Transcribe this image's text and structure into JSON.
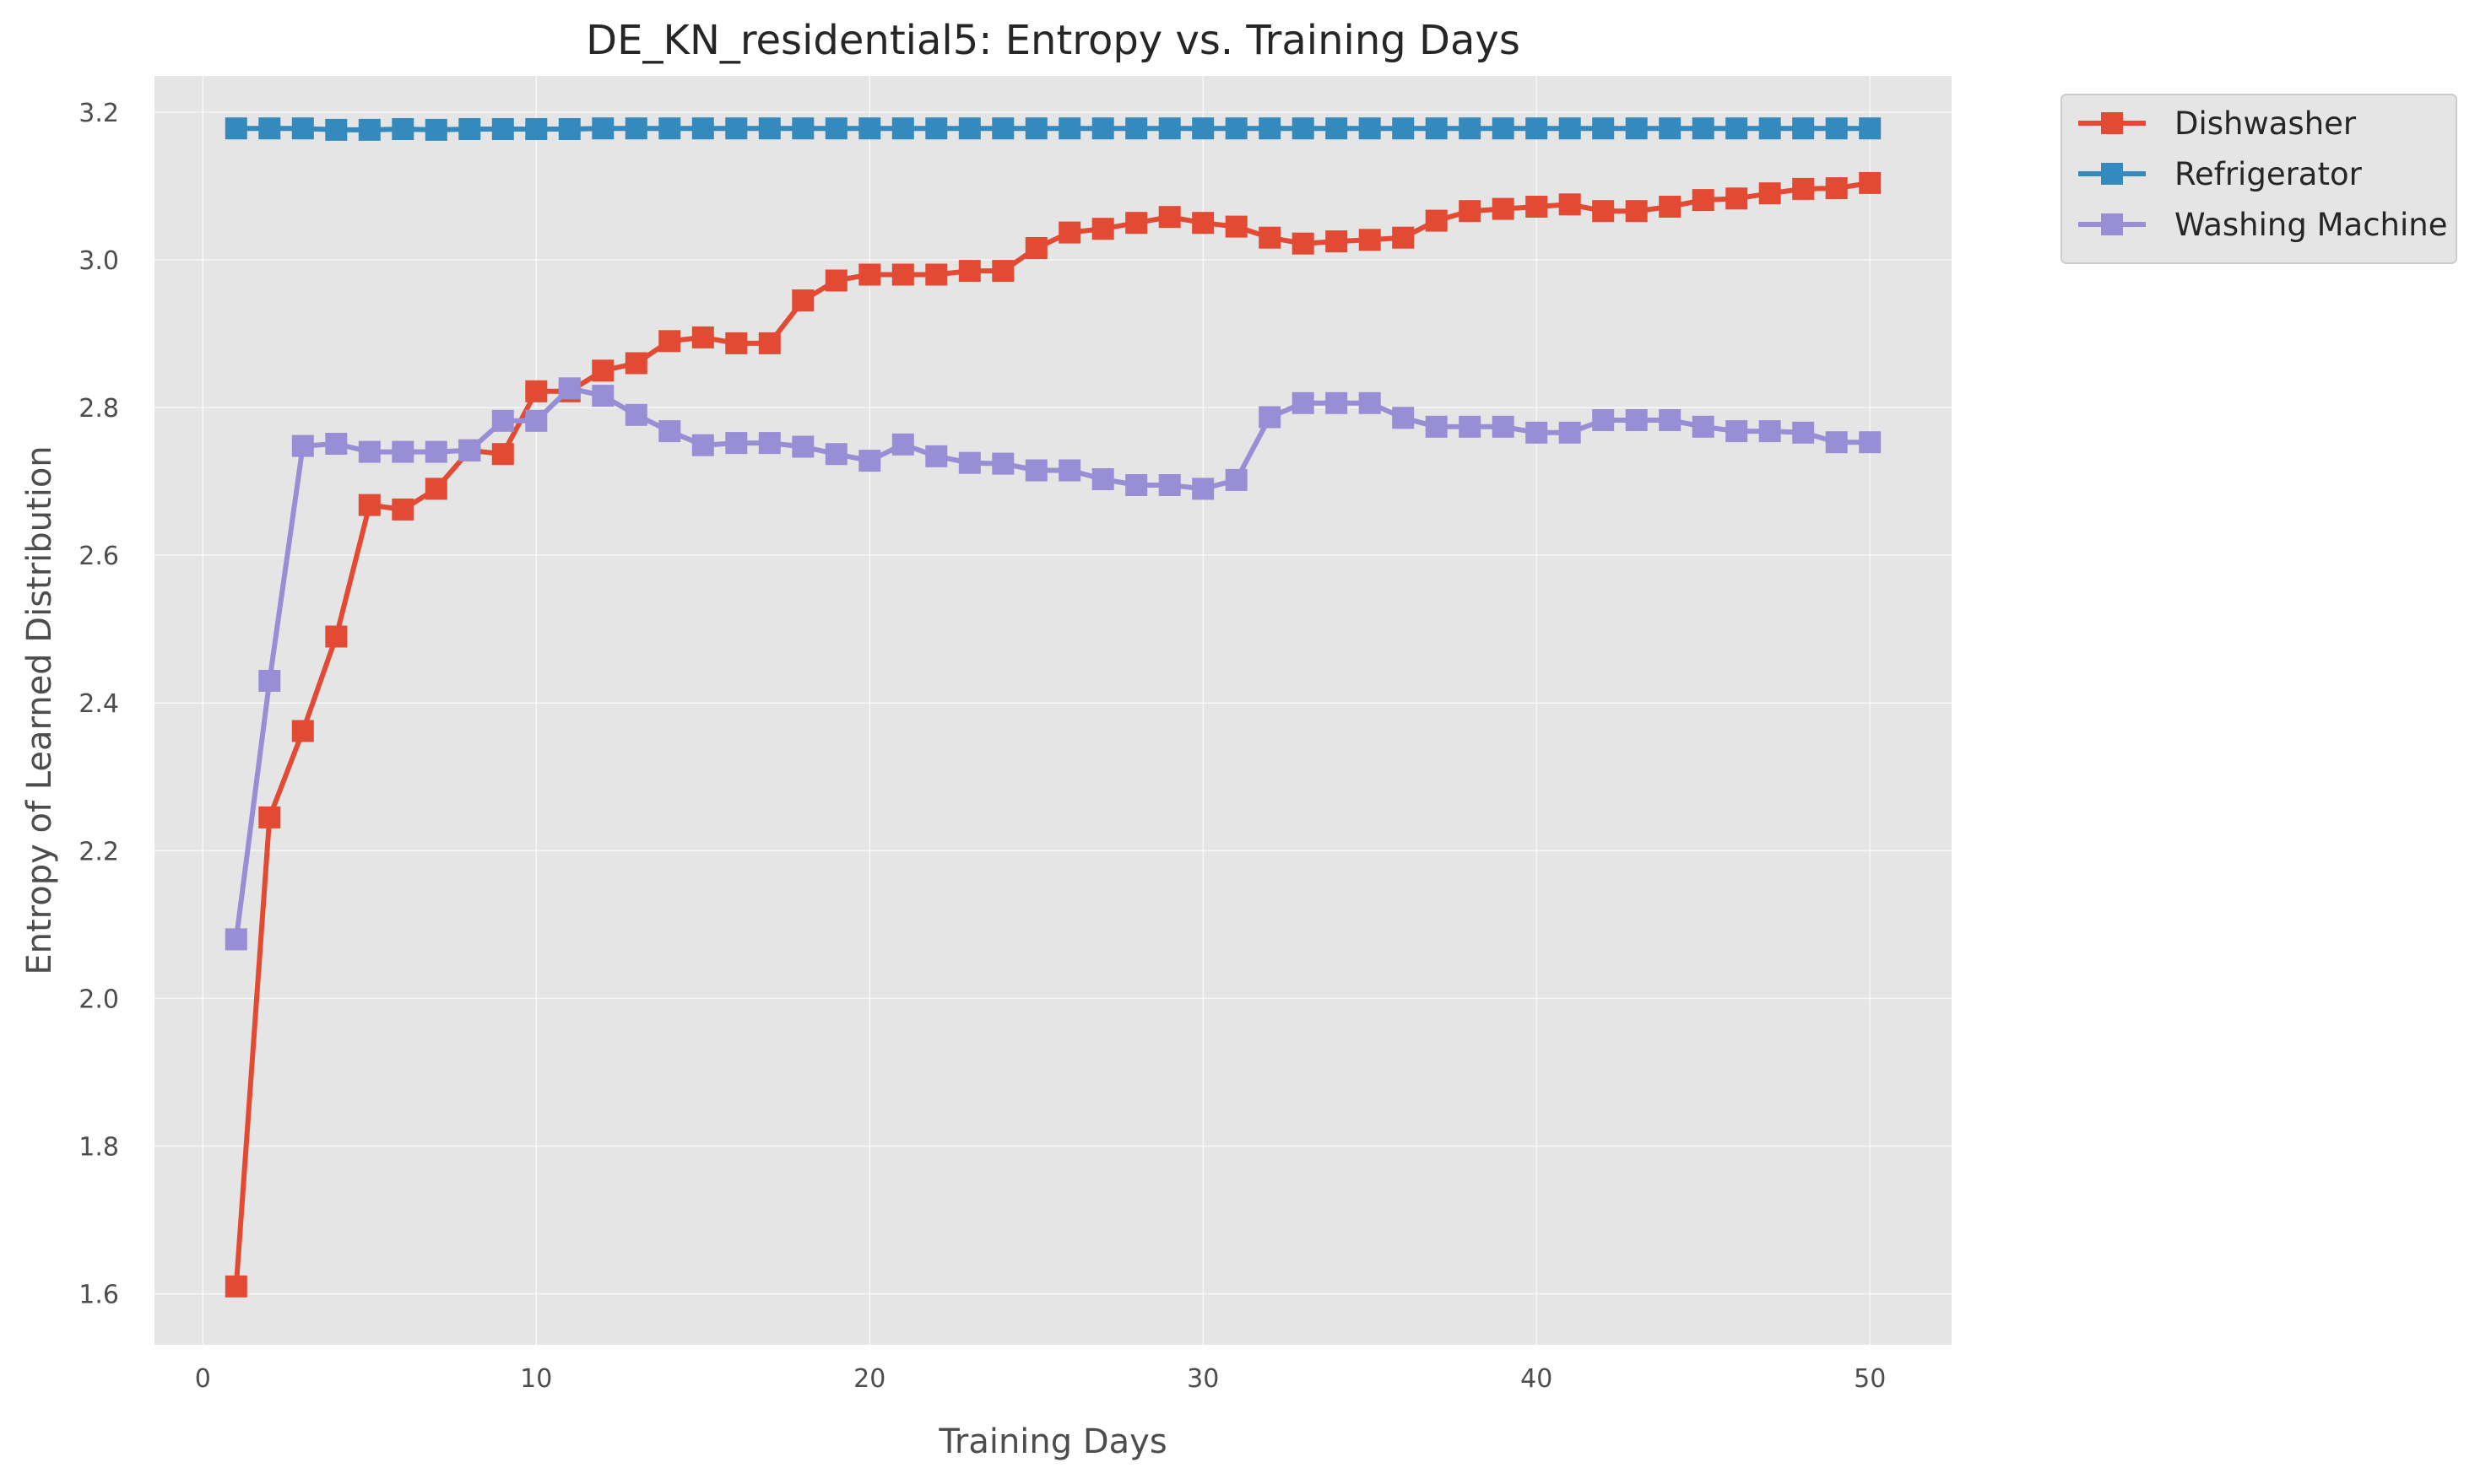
{
  "chart_data": {
    "type": "line",
    "title": "DE_KN_residential5: Entropy vs. Training Days",
    "xlabel": "Training Days",
    "ylabel": "Entropy of Learned Distribution",
    "xlim": [
      -1.45,
      52.45
    ],
    "ylim": [
      1.531,
      3.249
    ],
    "xticks": [
      0,
      10,
      20,
      30,
      40,
      50
    ],
    "xtick_labels": [
      "0",
      "10",
      "20",
      "30",
      "40",
      "50"
    ],
    "yticks": [
      1.6,
      1.8,
      2.0,
      2.2,
      2.4,
      2.6,
      2.8,
      3.0,
      3.2
    ],
    "ytick_labels": [
      "1.6",
      "1.8",
      "2.0",
      "2.2",
      "2.4",
      "2.6",
      "2.8",
      "3.0",
      "3.2"
    ],
    "grid": true,
    "legend_position": "outside-top-right",
    "marker": "square",
    "x": [
      1,
      2,
      3,
      4,
      5,
      6,
      7,
      8,
      9,
      10,
      11,
      12,
      13,
      14,
      15,
      16,
      17,
      18,
      19,
      20,
      21,
      22,
      23,
      24,
      25,
      26,
      27,
      28,
      29,
      30,
      31,
      32,
      33,
      34,
      35,
      36,
      37,
      38,
      39,
      40,
      41,
      42,
      43,
      44,
      45,
      46,
      47,
      48,
      49,
      50
    ],
    "series": [
      {
        "name": "Dishwasher",
        "color": "#E24A33",
        "values": [
          1.61,
          2.245,
          2.362,
          2.49,
          2.668,
          2.662,
          2.69,
          2.742,
          2.737,
          2.822,
          2.822,
          2.85,
          2.86,
          2.89,
          2.895,
          2.887,
          2.887,
          2.945,
          2.972,
          2.98,
          2.98,
          2.98,
          2.985,
          2.985,
          3.016,
          3.037,
          3.042,
          3.05,
          3.058,
          3.05,
          3.045,
          3.03,
          3.022,
          3.025,
          3.027,
          3.03,
          3.053,
          3.066,
          3.069,
          3.072,
          3.075,
          3.066,
          3.066,
          3.072,
          3.081,
          3.083,
          3.09,
          3.096,
          3.097,
          3.104
        ]
      },
      {
        "name": "Refrigerator",
        "color": "#348ABD",
        "values": [
          3.178,
          3.178,
          3.178,
          3.176,
          3.176,
          3.177,
          3.176,
          3.177,
          3.177,
          3.177,
          3.177,
          3.178,
          3.178,
          3.178,
          3.178,
          3.178,
          3.178,
          3.178,
          3.178,
          3.178,
          3.178,
          3.178,
          3.178,
          3.178,
          3.178,
          3.178,
          3.178,
          3.178,
          3.178,
          3.178,
          3.178,
          3.178,
          3.178,
          3.178,
          3.178,
          3.178,
          3.178,
          3.178,
          3.178,
          3.178,
          3.178,
          3.178,
          3.178,
          3.178,
          3.178,
          3.178,
          3.178,
          3.178,
          3.178,
          3.178
        ]
      },
      {
        "name": "Washing Machine",
        "color": "#988ED5",
        "values": [
          2.08,
          2.43,
          2.748,
          2.751,
          2.74,
          2.74,
          2.74,
          2.742,
          2.782,
          2.782,
          2.826,
          2.816,
          2.79,
          2.768,
          2.749,
          2.752,
          2.752,
          2.747,
          2.737,
          2.728,
          2.75,
          2.734,
          2.725,
          2.724,
          2.715,
          2.715,
          2.703,
          2.695,
          2.695,
          2.69,
          2.702,
          2.787,
          2.806,
          2.806,
          2.806,
          2.786,
          2.774,
          2.774,
          2.774,
          2.766,
          2.766,
          2.783,
          2.783,
          2.783,
          2.774,
          2.768,
          2.768,
          2.766,
          2.753,
          2.753
        ]
      }
    ]
  }
}
